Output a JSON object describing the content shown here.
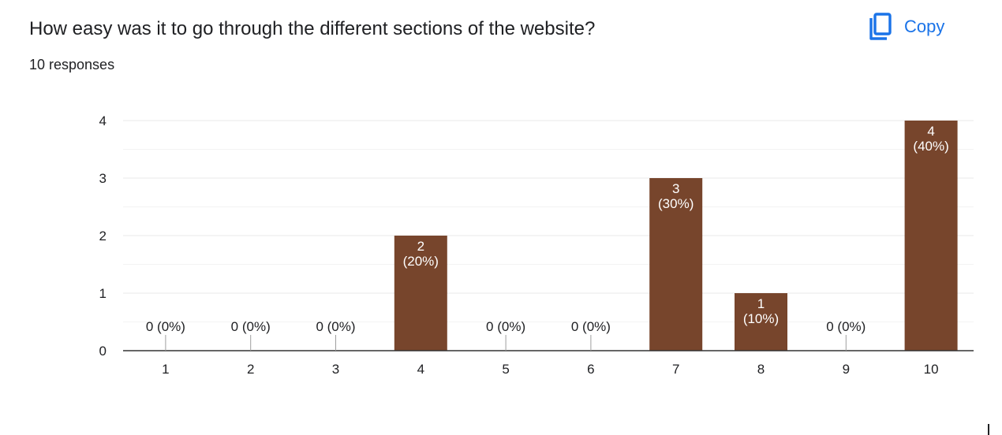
{
  "header": {
    "question": "How easy was it to go through the different sections of the website?",
    "responses": "10 responses",
    "copy_label": "Copy",
    "copy_icon": "copy-icon"
  },
  "colors": {
    "bar": "#77452c",
    "accent": "#1a73e8",
    "grid": "#e8e8e8",
    "axis": "#333333",
    "text": "#202124"
  },
  "chart_data": {
    "type": "bar",
    "categories": [
      "1",
      "2",
      "3",
      "4",
      "5",
      "6",
      "7",
      "8",
      "9",
      "10"
    ],
    "values": [
      0,
      0,
      0,
      2,
      0,
      0,
      3,
      1,
      0,
      4
    ],
    "data_labels": [
      "0 (0%)",
      "0 (0%)",
      "0 (0%)",
      "2\n(20%)",
      "0 (0%)",
      "0 (0%)",
      "3\n(30%)",
      "1\n(10%)",
      "0 (0%)",
      "4\n(40%)"
    ],
    "title": "",
    "xlabel": "",
    "ylabel": "",
    "ylim": [
      0,
      4
    ],
    "yticks": [
      "0",
      "1",
      "2",
      "3",
      "4"
    ],
    "grid": true,
    "legend": "none"
  }
}
